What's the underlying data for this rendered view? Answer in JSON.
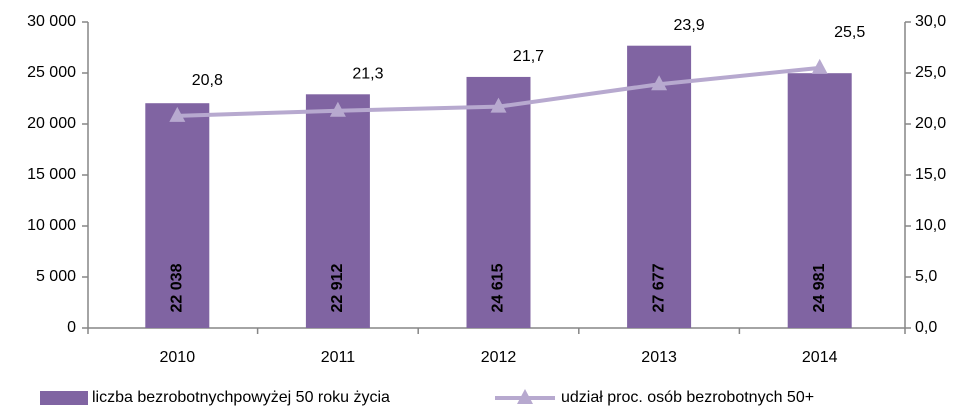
{
  "chart_data": {
    "type": "bar",
    "categories": [
      "2010",
      "2011",
      "2012",
      "2013",
      "2014"
    ],
    "series": [
      {
        "name": "liczba bezrobotnychpowyżej 50 roku życia",
        "color": "#8064a2",
        "type": "bar",
        "values": [
          22038,
          22912,
          24615,
          27677,
          24981
        ],
        "value_labels": [
          "22 038",
          "22 912",
          "24 615",
          "27 677",
          "24 981"
        ]
      },
      {
        "name": "udział proc. osób bezrobotnych 50+",
        "color": "#b7a9cf",
        "type": "line",
        "axis": "y2",
        "values": [
          20.8,
          21.3,
          21.7,
          23.9,
          25.5
        ],
        "value_labels": [
          "20,8",
          "21,3",
          "21,7",
          "23,9",
          "25,5"
        ]
      }
    ],
    "ylim": [
      0,
      30000
    ],
    "yticks": [
      0,
      {
        "value": 5000,
        "label": "5 000"
      },
      {
        "value": 10000,
        "label": "10 000"
      },
      {
        "value": 15000,
        "label": "15 000"
      },
      {
        "value": 20000,
        "label": "20 000"
      },
      {
        "value": 25000,
        "label": "25 000"
      },
      {
        "value": 30000,
        "label": "30 000"
      }
    ],
    "y2lim": [
      0,
      30
    ],
    "y2ticks": [
      {
        "value": 0,
        "label": "0,0"
      },
      {
        "value": 5,
        "label": "5,0"
      },
      {
        "value": 10,
        "label": "10,0"
      },
      {
        "value": 15,
        "label": "15,0"
      },
      {
        "value": 20,
        "label": "20,0"
      },
      {
        "value": 25,
        "label": "25,0"
      },
      {
        "value": 30,
        "label": "30,0"
      }
    ],
    "legend": "bottom"
  }
}
